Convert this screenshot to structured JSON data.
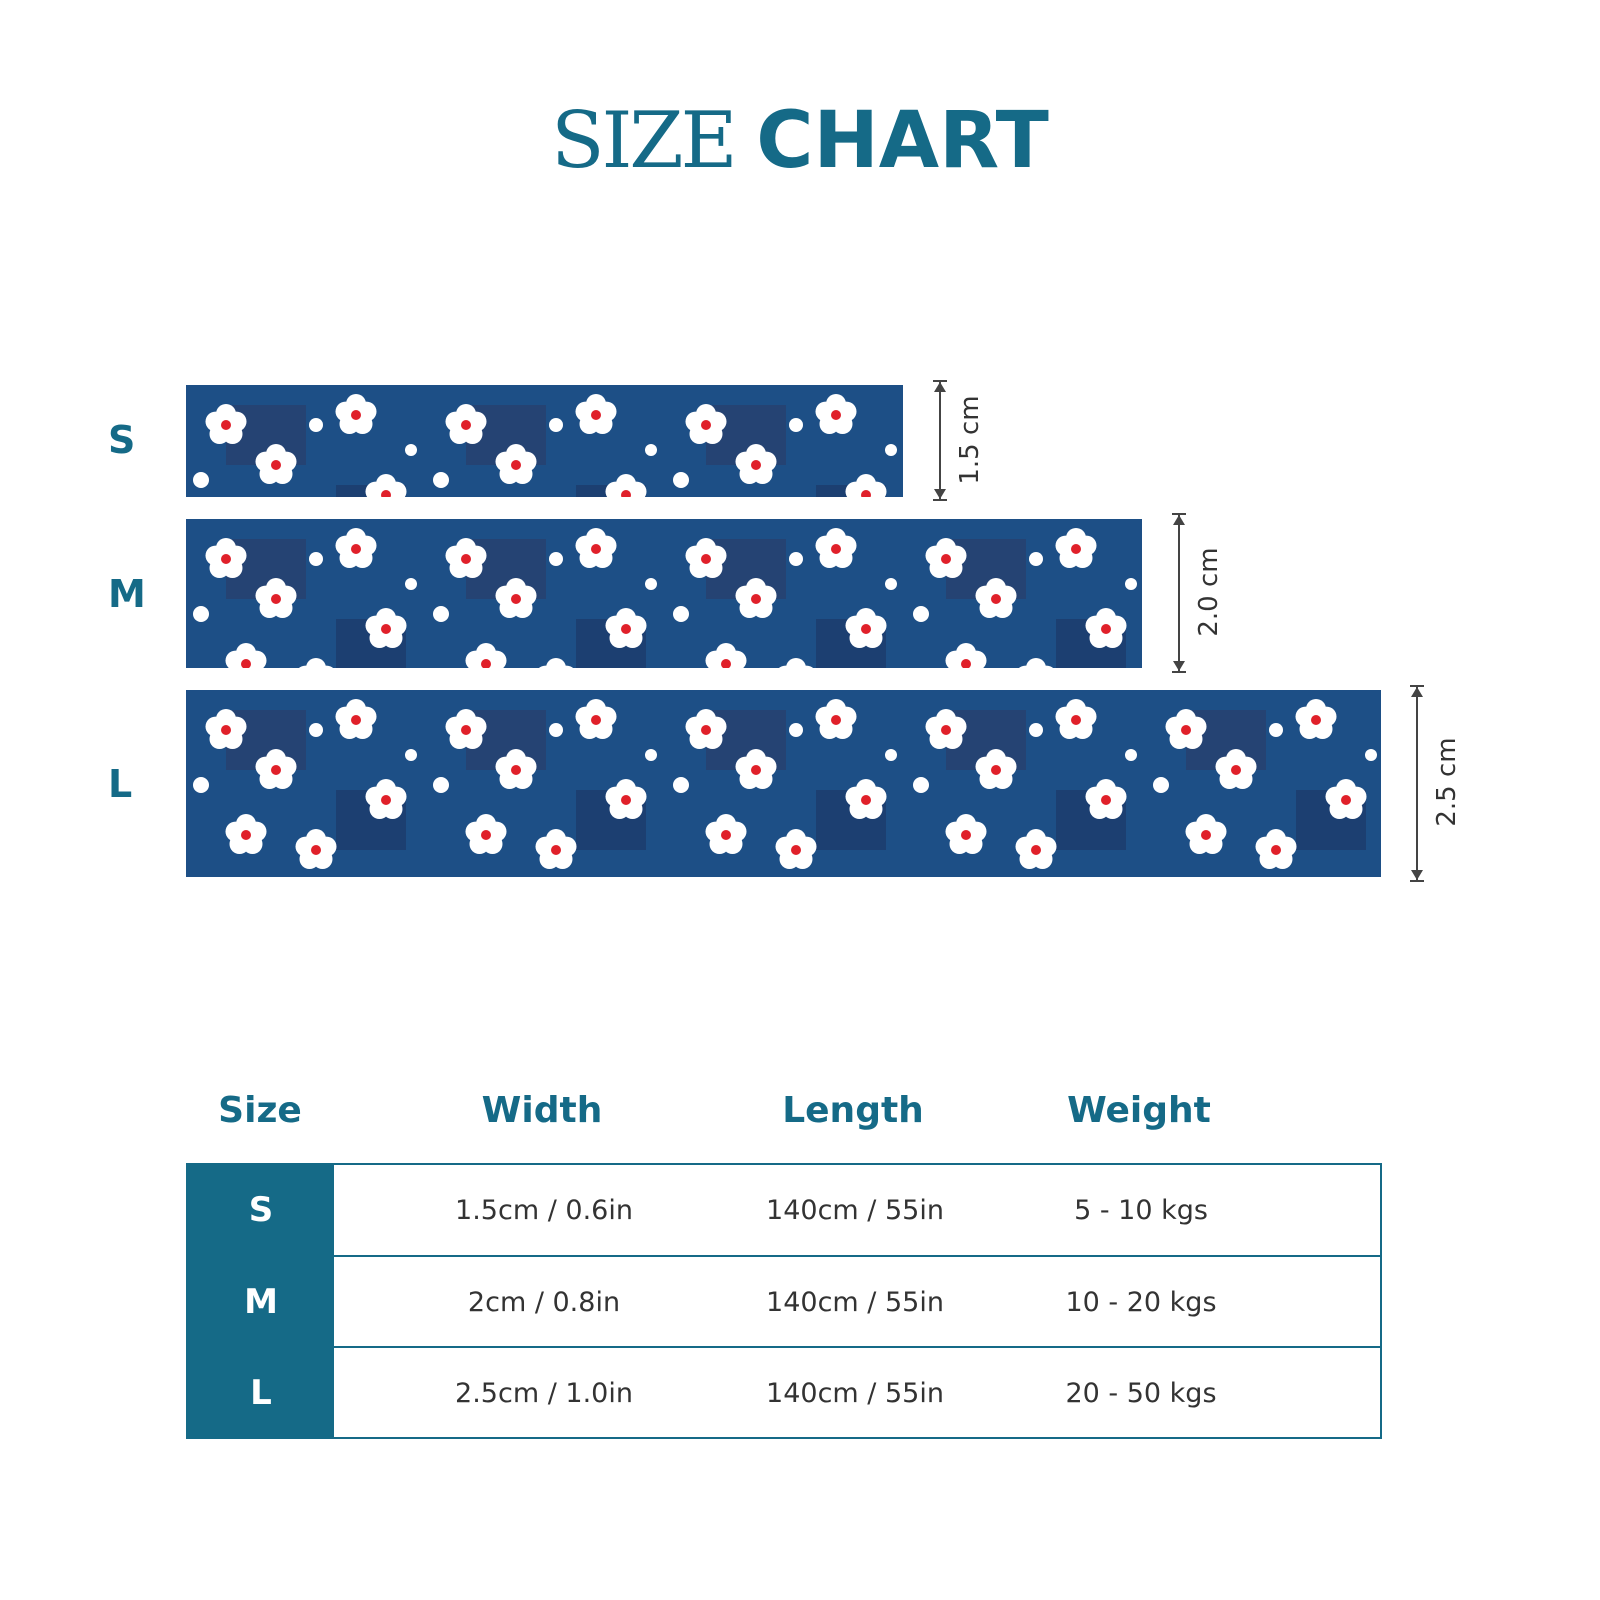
{
  "title": {
    "part1": "SIZE",
    "part2": "CHART"
  },
  "colors": {
    "accent": "#156a87",
    "fabric_base": "#1d4f86",
    "flower": "#ffffff",
    "flower_center": "#e0202a"
  },
  "strips": [
    {
      "size": "S",
      "width_label": "1.5 cm"
    },
    {
      "size": "M",
      "width_label": "2.0 cm"
    },
    {
      "size": "L",
      "width_label": "2.5 cm"
    }
  ],
  "table": {
    "headers": [
      "Size",
      "Width",
      "Length",
      "Weight"
    ],
    "rows": [
      {
        "size": "S",
        "width": "1.5cm / 0.6in",
        "length": "140cm / 55in",
        "weight": "5 - 10 kgs"
      },
      {
        "size": "M",
        "width": "2cm / 0.8in",
        "length": "140cm / 55in",
        "weight": "10 - 20 kgs"
      },
      {
        "size": "L",
        "width": "2.5cm / 1.0in",
        "length": "140cm / 55in",
        "weight": "20 - 50 kgs"
      }
    ]
  }
}
